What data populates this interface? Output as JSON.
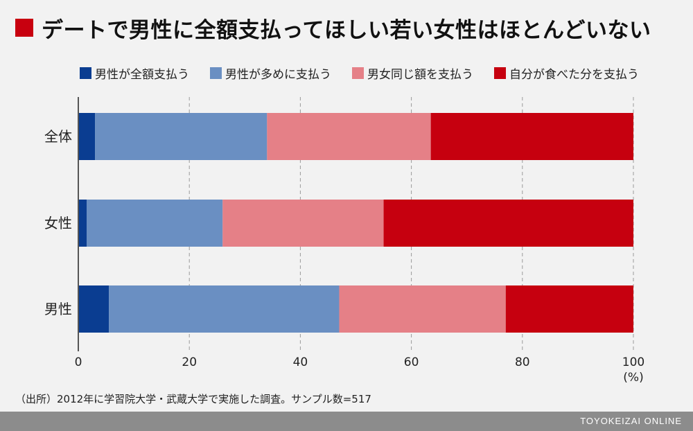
{
  "header": {
    "title": "デートで男性に全額支払ってほしい若い女性はほとんどいない",
    "marker_color": "#c8000f"
  },
  "chart_data": {
    "type": "bar",
    "orientation": "horizontal",
    "stacked": true,
    "categories": [
      "全体",
      "女性",
      "男性"
    ],
    "series": [
      {
        "name": "男性が全額支払う",
        "color": "#0a3d91",
        "values": [
          3,
          1.5,
          5.5
        ]
      },
      {
        "name": "男性が多めに支払う",
        "color": "#6a8fc2",
        "values": [
          31,
          24.5,
          41.5
        ]
      },
      {
        "name": "男女同じ額を支払う",
        "color": "#e58087",
        "values": [
          29.5,
          29,
          30
        ]
      },
      {
        "name": "自分が食べた分を支払う",
        "color": "#c6000f",
        "values": [
          36.5,
          45,
          23
        ]
      }
    ],
    "xlim": [
      0,
      100
    ],
    "xticks": [
      "0",
      "20",
      "40",
      "60",
      "80",
      "100"
    ],
    "xunit": "(%)",
    "grid": "vertical dashed",
    "legend_position": "top"
  },
  "footer": {
    "source": "（出所）2012年に学習院大学・武蔵大学で実施した調査。サンプル数=517",
    "brand": "TOYOKEIZAI ONLINE"
  }
}
